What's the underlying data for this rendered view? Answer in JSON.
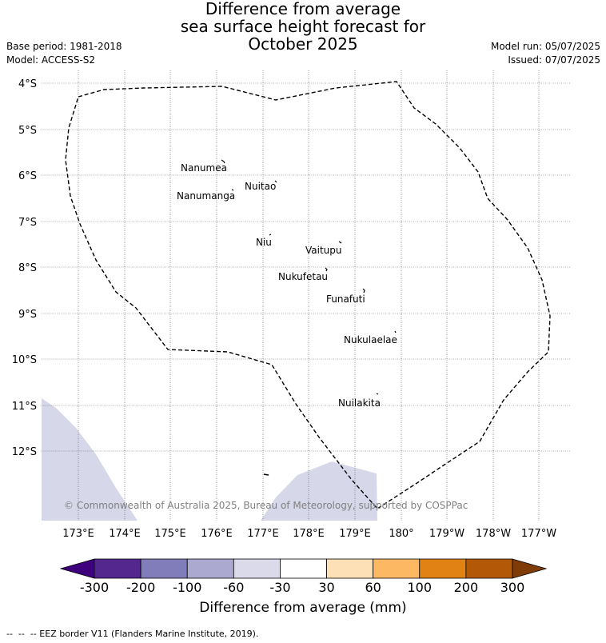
{
  "title": {
    "line1": "Difference from average",
    "line2": "sea surface height forecast for",
    "line3": "October 2025"
  },
  "meta_left": {
    "base_period": "Base period: 1981-2018",
    "model": "Model: ACCESS-S2"
  },
  "meta_right": {
    "model_run": "Model run: 05/07/2025",
    "issued": "Issued: 07/07/2025"
  },
  "map": {
    "lat_labels": [
      "4°S",
      "5°S",
      "6°S",
      "7°S",
      "8°S",
      "9°S",
      "10°S",
      "11°S",
      "12°S"
    ],
    "lon_labels": [
      "173°E",
      "174°E",
      "175°E",
      "176°E",
      "177°E",
      "178°E",
      "179°E",
      "180°",
      "179°W",
      "178°W",
      "177°W"
    ],
    "islands": [
      {
        "name": "Nanumea"
      },
      {
        "name": "Nuitao"
      },
      {
        "name": "Nanumanga"
      },
      {
        "name": "Niu"
      },
      {
        "name": "Vaitupu"
      },
      {
        "name": "Nukufetau"
      },
      {
        "name": "Funafuti"
      },
      {
        "name": "Nukulaelae"
      },
      {
        "name": "Nuilakita"
      }
    ],
    "copyright": "© Commonwealth of Australia 2025, Bureau of Meteorology, supported by COSPPac"
  },
  "colorbar": {
    "title": "Difference from average (mm)",
    "labels": [
      "-300",
      "-200",
      "-100",
      "-60",
      "-30",
      "30",
      "60",
      "100",
      "200",
      "300"
    ],
    "colors": [
      "#3f007d",
      "#54278f",
      "#807dba",
      "#aca9d1",
      "#dadaeb",
      "#ffffff",
      "#fee0b6",
      "#fdb863",
      "#e08214",
      "#b35806",
      "#7f3b08"
    ]
  },
  "footer": "--  --  -- EEZ border V11 (Flanders Marine Institute, 2019)."
}
